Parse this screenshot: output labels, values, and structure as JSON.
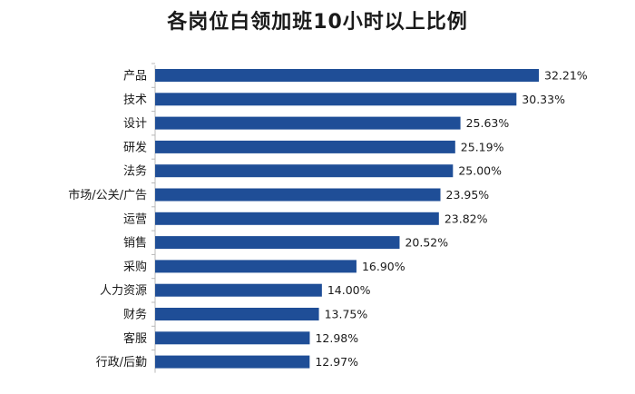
{
  "chart_data": {
    "type": "bar",
    "orientation": "horizontal",
    "title": "各岗位白领加班10小时以上比例",
    "categories": [
      "产品",
      "技术",
      "设计",
      "研发",
      "法务",
      "市场/公关/广告",
      "运营",
      "销售",
      "采购",
      "人力资源",
      "财务",
      "客服",
      "行政/后勤"
    ],
    "values": [
      32.21,
      30.33,
      25.63,
      25.19,
      25.0,
      23.95,
      23.82,
      20.52,
      16.9,
      14.0,
      13.75,
      12.98,
      12.97
    ],
    "value_labels": [
      "32.21%",
      "30.33%",
      "25.63%",
      "25.19%",
      "25.00%",
      "23.95%",
      "23.82%",
      "20.52%",
      "16.90%",
      "14.00%",
      "13.75%",
      "12.98%",
      "12.97%"
    ],
    "xlim": [
      0,
      32.21
    ],
    "grid": false,
    "bar_color": "#1f4e97"
  }
}
